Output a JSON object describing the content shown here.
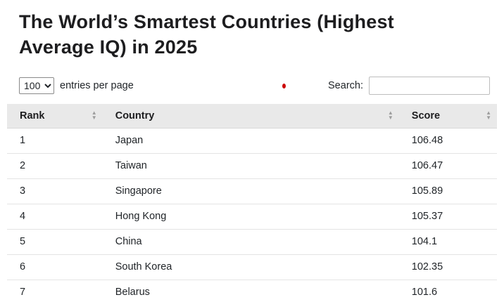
{
  "title": "The World’s Smartest Countries (Highest Average IQ) in 2025",
  "controls": {
    "entries_value": "100",
    "entries_label": "entries per page",
    "search_label": "Search:",
    "search_value": ""
  },
  "icons": {
    "sort_asc": "▲",
    "sort_desc": "▼"
  },
  "table": {
    "columns": [
      "Rank",
      "Country",
      "Score"
    ],
    "rows": [
      {
        "rank": "1",
        "country": "Japan",
        "score": "106.48"
      },
      {
        "rank": "2",
        "country": "Taiwan",
        "score": "106.47"
      },
      {
        "rank": "3",
        "country": "Singapore",
        "score": "105.89"
      },
      {
        "rank": "4",
        "country": "Hong Kong",
        "score": "105.37"
      },
      {
        "rank": "5",
        "country": "China",
        "score": "104.1"
      },
      {
        "rank": "6",
        "country": "South Korea",
        "score": "102.35"
      },
      {
        "rank": "7",
        "country": "Belarus",
        "score": "101.6"
      }
    ]
  }
}
